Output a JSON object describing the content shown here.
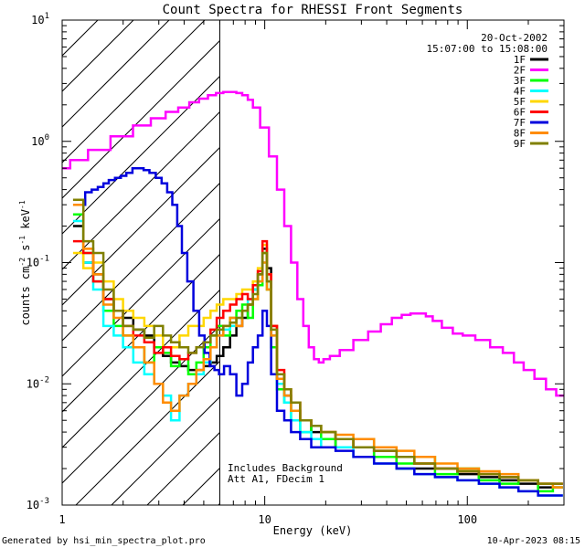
{
  "chart_data": {
    "type": "line",
    "title": "Count Spectra for RHESSI Front Segments",
    "xlabel": "Energy (keV)",
    "ylabel_parts": [
      "counts cm",
      "-2",
      " s",
      "-1",
      " keV",
      "-1"
    ],
    "xscale": "log",
    "yscale": "log",
    "xlim": [
      1,
      300
    ],
    "ylim": [
      0.001,
      10
    ],
    "x_ticks": [
      {
        "value": 1,
        "label": "1"
      },
      {
        "value": 10,
        "label": "10"
      },
      {
        "value": 100,
        "label": "100"
      }
    ],
    "y_ticks": [
      {
        "value": 0.001,
        "base": "10",
        "exp": "-3"
      },
      {
        "value": 0.01,
        "base": "10",
        "exp": "-2"
      },
      {
        "value": 0.1,
        "base": "10",
        "exp": "-1"
      },
      {
        "value": 1,
        "base": "10",
        "exp": "0"
      },
      {
        "value": 10,
        "base": "10",
        "exp": "1"
      }
    ],
    "date": "20-Oct-2002",
    "time_range": "15:07:00 to 15:08:00",
    "hatched_region": [
      1,
      6
    ],
    "annotations": [
      "Includes Background",
      "Att A1, FDecim 1"
    ],
    "footer_left": "Generated by hsi_min_spectra_plot.pro",
    "footer_right": "10-Apr-2023 08:15",
    "series": [
      {
        "name": "1F",
        "color": "#000000",
        "x": [
          1.2,
          1.35,
          1.5,
          1.7,
          1.9,
          2.1,
          2.4,
          2.7,
          3.0,
          3.3,
          3.6,
          4.0,
          4.4,
          4.8,
          5.2,
          5.6,
          6.0,
          6.5,
          7.0,
          7.5,
          8.0,
          8.5,
          9.0,
          9.5,
          10.0,
          10.5,
          11.0,
          12,
          13,
          14,
          16,
          18,
          20,
          25,
          30,
          40,
          50,
          60,
          80,
          100,
          130,
          160,
          200,
          250,
          280
        ],
        "y": [
          0.2,
          0.1,
          0.08,
          0.05,
          0.04,
          0.035,
          0.028,
          0.025,
          0.02,
          0.017,
          0.015,
          0.014,
          0.013,
          0.013,
          0.014,
          0.015,
          0.017,
          0.02,
          0.025,
          0.03,
          0.035,
          0.045,
          0.06,
          0.08,
          0.13,
          0.09,
          0.03,
          0.012,
          0.008,
          0.006,
          0.005,
          0.004,
          0.004,
          0.003,
          0.003,
          0.0025,
          0.002,
          0.002,
          0.002,
          0.0018,
          0.0017,
          0.0016,
          0.0015,
          0.0014,
          0.0014
        ]
      },
      {
        "name": "2F",
        "color": "#ff00ff",
        "x": [
          1.0,
          1.2,
          1.5,
          2.0,
          2.5,
          3.0,
          3.5,
          4.0,
          4.5,
          5.0,
          5.5,
          6.0,
          6.5,
          7.0,
          7.5,
          8.0,
          8.5,
          9.0,
          10,
          11,
          12,
          13,
          14,
          15,
          16,
          17,
          18,
          19,
          20,
          22,
          25,
          30,
          35,
          40,
          45,
          50,
          55,
          60,
          65,
          70,
          80,
          90,
          100,
          120,
          140,
          160,
          180,
          200,
          230,
          260,
          290
        ],
        "y": [
          0.6,
          0.7,
          0.85,
          1.1,
          1.35,
          1.55,
          1.75,
          1.9,
          2.1,
          2.25,
          2.4,
          2.5,
          2.55,
          2.55,
          2.5,
          2.4,
          2.2,
          1.9,
          1.3,
          0.75,
          0.4,
          0.2,
          0.1,
          0.05,
          0.03,
          0.02,
          0.016,
          0.015,
          0.016,
          0.017,
          0.019,
          0.023,
          0.027,
          0.031,
          0.035,
          0.037,
          0.038,
          0.038,
          0.036,
          0.033,
          0.029,
          0.026,
          0.025,
          0.023,
          0.02,
          0.018,
          0.015,
          0.013,
          0.011,
          0.009,
          0.008
        ]
      },
      {
        "name": "3F",
        "color": "#00ff00",
        "x": [
          1.2,
          1.35,
          1.5,
          1.7,
          1.9,
          2.1,
          2.4,
          2.7,
          3.0,
          3.3,
          3.6,
          4.0,
          4.4,
          4.8,
          5.2,
          5.6,
          6.0,
          6.5,
          7.0,
          7.5,
          8.0,
          8.5,
          9.0,
          9.5,
          10.0,
          10.5,
          11.0,
          12,
          13,
          14,
          16,
          18,
          20,
          25,
          30,
          40,
          50,
          60,
          80,
          100,
          130,
          160,
          200,
          250,
          280
        ],
        "y": [
          0.25,
          0.12,
          0.07,
          0.04,
          0.03,
          0.025,
          0.02,
          0.015,
          0.02,
          0.018,
          0.014,
          0.016,
          0.012,
          0.015,
          0.02,
          0.025,
          0.03,
          0.025,
          0.035,
          0.04,
          0.045,
          0.035,
          0.05,
          0.065,
          0.12,
          0.06,
          0.02,
          0.009,
          0.007,
          0.005,
          0.004,
          0.0045,
          0.0035,
          0.003,
          0.0035,
          0.0025,
          0.0022,
          0.0025,
          0.0018,
          0.002,
          0.0016,
          0.0015,
          0.0016,
          0.0013,
          0.0014
        ]
      },
      {
        "name": "4F",
        "color": "#00ffff",
        "x": [
          1.2,
          1.35,
          1.5,
          1.7,
          1.9,
          2.1,
          2.4,
          2.7,
          3.0,
          3.3,
          3.6,
          4.0,
          4.4,
          4.8,
          5.2,
          5.6,
          6.0,
          6.5,
          7.0,
          7.5,
          8.0,
          8.5,
          9.0,
          9.5,
          10.0,
          10.5,
          11.0,
          12,
          13,
          14,
          16,
          18,
          20,
          25,
          30,
          40,
          50,
          60,
          80,
          100,
          130,
          160,
          200,
          250,
          280
        ],
        "y": [
          0.22,
          0.1,
          0.06,
          0.03,
          0.025,
          0.02,
          0.015,
          0.012,
          0.01,
          0.008,
          0.005,
          0.008,
          0.01,
          0.012,
          0.015,
          0.02,
          0.025,
          0.028,
          0.03,
          0.035,
          0.04,
          0.05,
          0.06,
          0.07,
          0.1,
          0.07,
          0.025,
          0.01,
          0.007,
          0.005,
          0.004,
          0.0035,
          0.003,
          0.003,
          0.0025,
          0.0022,
          0.002,
          0.0018,
          0.0017,
          0.0016,
          0.0015,
          0.0014,
          0.0013,
          0.0012,
          0.0012
        ]
      },
      {
        "name": "5F",
        "color": "#ffd700",
        "x": [
          1.2,
          1.35,
          1.5,
          1.7,
          1.9,
          2.1,
          2.4,
          2.7,
          3.0,
          3.3,
          3.6,
          4.0,
          4.4,
          4.8,
          5.2,
          5.6,
          6.0,
          6.5,
          7.0,
          7.5,
          8.0,
          8.5,
          9.0,
          9.5,
          10.0,
          10.5,
          11.0,
          12,
          13,
          14,
          16,
          18,
          20,
          25,
          30,
          40,
          50,
          60,
          80,
          100,
          130,
          160,
          200,
          250,
          280
        ],
        "y": [
          0.12,
          0.09,
          0.1,
          0.07,
          0.05,
          0.04,
          0.035,
          0.03,
          0.025,
          0.02,
          0.02,
          0.025,
          0.03,
          0.03,
          0.035,
          0.04,
          0.045,
          0.05,
          0.05,
          0.055,
          0.06,
          0.06,
          0.07,
          0.09,
          0.14,
          0.08,
          0.03,
          0.012,
          0.009,
          0.007,
          0.005,
          0.0045,
          0.004,
          0.0035,
          0.003,
          0.0028,
          0.0025,
          0.0022,
          0.002,
          0.0019,
          0.0018,
          0.0017,
          0.0016,
          0.0015,
          0.0015
        ]
      },
      {
        "name": "6F",
        "color": "#ff0000",
        "x": [
          1.2,
          1.35,
          1.5,
          1.7,
          1.9,
          2.1,
          2.4,
          2.7,
          3.0,
          3.3,
          3.6,
          4.0,
          4.4,
          4.8,
          5.2,
          5.6,
          6.0,
          6.5,
          7.0,
          7.5,
          8.0,
          8.5,
          9.0,
          9.5,
          10.0,
          10.5,
          11.0,
          12,
          13,
          14,
          16,
          18,
          20,
          25,
          30,
          40,
          50,
          60,
          80,
          100,
          130,
          160,
          200,
          250,
          280
        ],
        "y": [
          0.15,
          0.12,
          0.07,
          0.05,
          0.04,
          0.03,
          0.025,
          0.022,
          0.018,
          0.02,
          0.017,
          0.016,
          0.018,
          0.02,
          0.022,
          0.028,
          0.035,
          0.04,
          0.045,
          0.05,
          0.055,
          0.05,
          0.065,
          0.085,
          0.15,
          0.08,
          0.03,
          0.013,
          0.009,
          0.007,
          0.005,
          0.0045,
          0.004,
          0.0035,
          0.003,
          0.0028,
          0.0025,
          0.0022,
          0.002,
          0.0019,
          0.0018,
          0.0017,
          0.0016,
          0.0015,
          0.0015
        ]
      },
      {
        "name": "7F",
        "color": "#0000dd",
        "x": [
          1.25,
          1.35,
          1.45,
          1.55,
          1.65,
          1.75,
          1.9,
          2.0,
          2.15,
          2.3,
          2.45,
          2.6,
          2.8,
          3.0,
          3.2,
          3.4,
          3.6,
          3.8,
          4.0,
          4.3,
          4.6,
          4.9,
          5.2,
          5.5,
          5.8,
          6.1,
          6.5,
          7.0,
          7.5,
          8.0,
          8.5,
          9.0,
          9.5,
          10.0,
          10.5,
          11.0,
          12,
          13,
          14,
          16,
          18,
          20,
          25,
          30,
          40,
          50,
          60,
          80,
          100,
          130,
          160,
          200,
          250,
          280
        ],
        "y": [
          0.3,
          0.38,
          0.4,
          0.42,
          0.45,
          0.48,
          0.5,
          0.52,
          0.55,
          0.6,
          0.6,
          0.58,
          0.55,
          0.5,
          0.45,
          0.38,
          0.3,
          0.2,
          0.12,
          0.07,
          0.04,
          0.025,
          0.018,
          0.014,
          0.013,
          0.012,
          0.014,
          0.012,
          0.008,
          0.01,
          0.015,
          0.02,
          0.025,
          0.04,
          0.03,
          0.012,
          0.006,
          0.005,
          0.004,
          0.0035,
          0.003,
          0.003,
          0.0028,
          0.0025,
          0.0022,
          0.002,
          0.0018,
          0.0017,
          0.0016,
          0.0015,
          0.0014,
          0.0013,
          0.0012,
          0.0012
        ]
      },
      {
        "name": "8F",
        "color": "#ff8c00",
        "x": [
          1.2,
          1.35,
          1.5,
          1.7,
          1.9,
          2.1,
          2.4,
          2.7,
          3.0,
          3.3,
          3.6,
          4.0,
          4.4,
          4.8,
          5.2,
          5.6,
          6.0,
          6.5,
          7.0,
          7.5,
          8.0,
          8.5,
          9.0,
          9.5,
          10.0,
          10.5,
          11.0,
          12,
          13,
          14,
          16,
          18,
          20,
          25,
          30,
          40,
          50,
          60,
          80,
          100,
          130,
          160,
          200,
          250,
          280
        ],
        "y": [
          0.3,
          0.13,
          0.08,
          0.045,
          0.035,
          0.025,
          0.02,
          0.015,
          0.01,
          0.007,
          0.006,
          0.008,
          0.01,
          0.013,
          0.016,
          0.02,
          0.025,
          0.03,
          0.035,
          0.03,
          0.04,
          0.045,
          0.05,
          0.07,
          0.1,
          0.06,
          0.025,
          0.011,
          0.008,
          0.006,
          0.005,
          0.0045,
          0.004,
          0.0038,
          0.0035,
          0.003,
          0.0028,
          0.0025,
          0.0022,
          0.002,
          0.0019,
          0.0018,
          0.0016,
          0.0015,
          0.0014
        ]
      },
      {
        "name": "9F",
        "color": "#808000",
        "x": [
          1.2,
          1.35,
          1.5,
          1.7,
          1.9,
          2.1,
          2.4,
          2.7,
          3.0,
          3.3,
          3.6,
          4.0,
          4.4,
          4.8,
          5.2,
          5.6,
          6.0,
          6.5,
          7.0,
          7.5,
          8.0,
          8.5,
          9.0,
          9.5,
          10.0,
          10.5,
          11.0,
          12,
          13,
          14,
          16,
          18,
          20,
          25,
          30,
          40,
          50,
          60,
          80,
          100,
          130,
          160,
          200,
          250,
          280
        ],
        "y": [
          0.33,
          0.15,
          0.12,
          0.06,
          0.04,
          0.03,
          0.028,
          0.024,
          0.03,
          0.025,
          0.022,
          0.02,
          0.018,
          0.02,
          0.022,
          0.025,
          0.028,
          0.03,
          0.032,
          0.035,
          0.04,
          0.045,
          0.055,
          0.08,
          0.12,
          0.07,
          0.028,
          0.012,
          0.009,
          0.007,
          0.005,
          0.0045,
          0.004,
          0.0035,
          0.003,
          0.0028,
          0.0025,
          0.0022,
          0.002,
          0.0019,
          0.0018,
          0.0017,
          0.0016,
          0.0015,
          0.0015
        ]
      }
    ]
  }
}
